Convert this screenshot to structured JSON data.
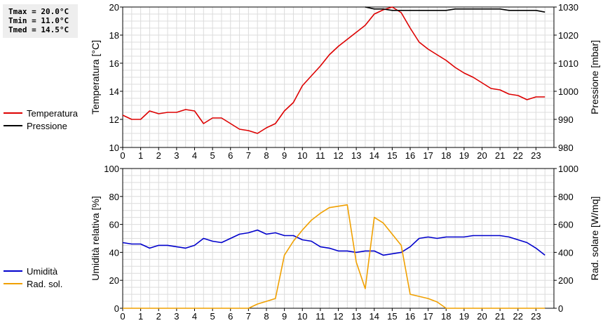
{
  "stats": {
    "tmax": "Tmax = 20.0°C",
    "tmin": "Tmin = 11.0°C",
    "tmed": "Tmed = 14.5°C"
  },
  "chart_data": [
    {
      "type": "line",
      "ylabel": "Temperatura [°C]",
      "y2label": "Pressione [mbar]",
      "xlim": [
        0,
        24
      ],
      "x_ticks": [
        "0",
        "1",
        "2",
        "3",
        "4",
        "5",
        "6",
        "7",
        "8",
        "9",
        "10",
        "11",
        "12",
        "13",
        "14",
        "15",
        "16",
        "17",
        "18",
        "19",
        "20",
        "21",
        "22",
        "23"
      ],
      "ylim": [
        10,
        20
      ],
      "y_ticks": [
        "10",
        "12",
        "14",
        "16",
        "18",
        "20"
      ],
      "y2lim": [
        980,
        1030
      ],
      "y2_ticks": [
        "980",
        "990",
        "1000",
        "1010",
        "1020",
        "1030"
      ],
      "grid": true,
      "legend_position": "left",
      "series": [
        {
          "name": "Temperatura",
          "axis": "left",
          "color": "#dd0000",
          "x": [
            0,
            0.5,
            1,
            1.5,
            2,
            2.5,
            3,
            3.5,
            4,
            4.5,
            5,
            5.5,
            6,
            6.5,
            7,
            7.5,
            8,
            8.5,
            9,
            9.5,
            10,
            10.5,
            11,
            11.5,
            12,
            12.5,
            13,
            13.5,
            14,
            14.5,
            15,
            15.5,
            16,
            16.5,
            17,
            17.5,
            18,
            18.5,
            19,
            19.5,
            20,
            20.5,
            21,
            21.5,
            22,
            22.5,
            23,
            23.5
          ],
          "values": [
            12.3,
            12.0,
            12.0,
            12.6,
            12.4,
            12.5,
            12.5,
            12.7,
            12.6,
            11.7,
            12.1,
            12.1,
            11.7,
            11.3,
            11.2,
            11.0,
            11.4,
            11.7,
            12.6,
            13.2,
            14.4,
            15.1,
            15.8,
            16.6,
            17.2,
            17.7,
            18.2,
            18.7,
            19.5,
            19.8,
            20.0,
            19.6,
            18.5,
            17.5,
            17.0,
            16.6,
            16.2,
            15.7,
            15.3,
            15.0,
            14.6,
            14.2,
            14.1,
            13.8,
            13.7,
            13.4,
            13.6,
            13.6
          ]
        },
        {
          "name": "Pressione",
          "axis": "right",
          "color": "#000000",
          "x": [
            13.5,
            14,
            14.5,
            15,
            15.5,
            16,
            17,
            18,
            18.5,
            19,
            20,
            21,
            21.5,
            22,
            23,
            23.5
          ],
          "values": [
            1030,
            1029.3,
            1029.3,
            1028.8,
            1028.8,
            1028.8,
            1028.8,
            1028.8,
            1029.3,
            1029.3,
            1029.3,
            1029.3,
            1028.8,
            1028.8,
            1028.8,
            1028.2
          ]
        }
      ]
    },
    {
      "type": "line",
      "ylabel": "Umidità relativa [%]",
      "y2label": "Rad. solare [W/mq]",
      "xlim": [
        0,
        24
      ],
      "x_ticks": [
        "0",
        "1",
        "2",
        "3",
        "4",
        "5",
        "6",
        "7",
        "8",
        "9",
        "10",
        "11",
        "12",
        "13",
        "14",
        "15",
        "16",
        "17",
        "18",
        "19",
        "20",
        "21",
        "22",
        "23"
      ],
      "ylim": [
        0,
        100
      ],
      "y_ticks": [
        "0",
        "20",
        "40",
        "60",
        "80",
        "100"
      ],
      "y2lim": [
        0,
        1000
      ],
      "y2_ticks": [
        "0",
        "200",
        "400",
        "600",
        "800",
        "1000"
      ],
      "grid": true,
      "legend_position": "left",
      "series": [
        {
          "name": "Umidità",
          "axis": "left",
          "color": "#0000cc",
          "x": [
            0,
            0.5,
            1,
            1.5,
            2,
            2.5,
            3,
            3.5,
            4,
            4.5,
            5,
            5.5,
            6,
            6.5,
            7,
            7.5,
            8,
            8.5,
            9,
            9.5,
            10,
            10.5,
            11,
            11.5,
            12,
            12.5,
            13,
            13.5,
            14,
            14.5,
            15,
            15.5,
            16,
            16.5,
            17,
            17.5,
            18,
            18.5,
            19,
            19.5,
            20,
            20.5,
            21,
            21.5,
            22,
            22.5,
            23,
            23.5
          ],
          "values": [
            47,
            46,
            46,
            43,
            45,
            45,
            44,
            43,
            45,
            50,
            48,
            47,
            50,
            53,
            54,
            56,
            53,
            54,
            52,
            52,
            49,
            48,
            44,
            43,
            41,
            41,
            40,
            41,
            41,
            38,
            39,
            40,
            44,
            50,
            51,
            50,
            51,
            51,
            51,
            52,
            52,
            52,
            52,
            51,
            49,
            47,
            43,
            38
          ]
        },
        {
          "name": "Rad. sol.",
          "axis": "right",
          "color": "#f0a000",
          "x": [
            0,
            1,
            2,
            3,
            4,
            5,
            6,
            7,
            7.5,
            8,
            8.5,
            9,
            9.5,
            10,
            10.5,
            11,
            11.5,
            12,
            12.5,
            13,
            13.5,
            14,
            14.5,
            15,
            15.5,
            16,
            16.5,
            17,
            17.5,
            18,
            19,
            20,
            21,
            22,
            23,
            23.5
          ],
          "values": [
            0,
            0,
            0,
            0,
            0,
            0,
            0,
            0,
            30,
            50,
            70,
            380,
            480,
            560,
            630,
            680,
            720,
            730,
            740,
            330,
            140,
            650,
            610,
            530,
            450,
            100,
            85,
            70,
            45,
            0,
            0,
            0,
            0,
            0,
            0,
            0
          ]
        }
      ]
    }
  ]
}
